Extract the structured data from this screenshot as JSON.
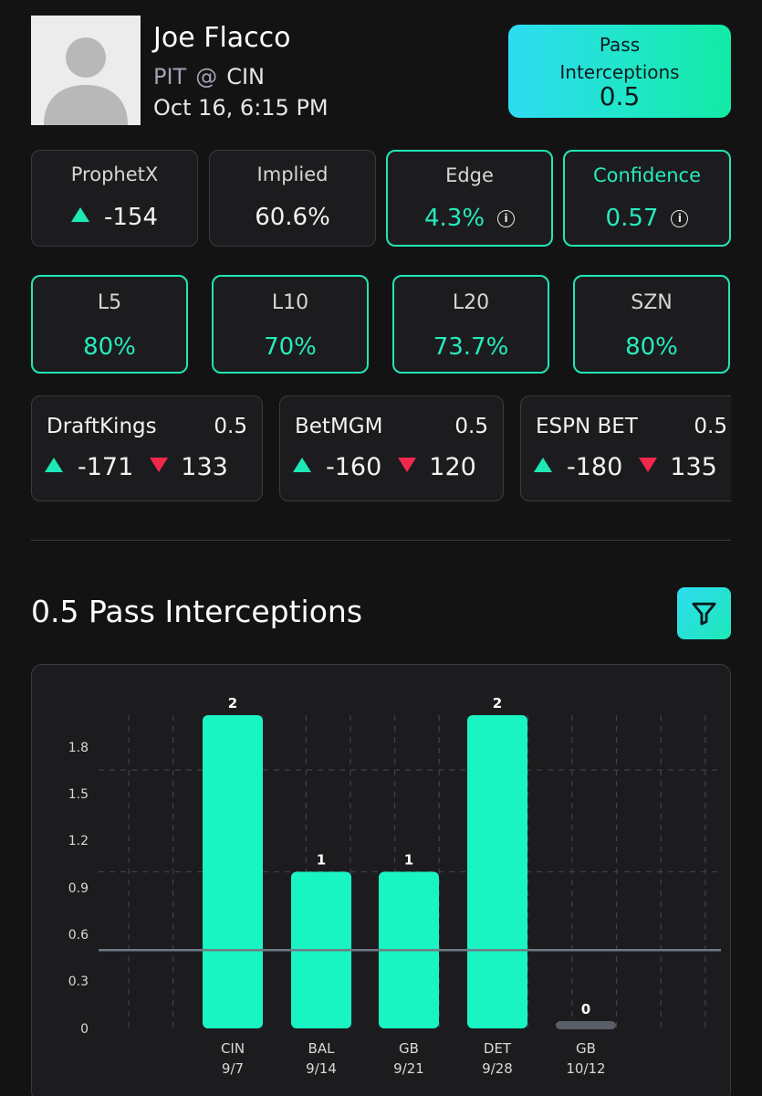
{
  "player": {
    "name": "Joe Flacco",
    "team": "PIT",
    "at": "@",
    "opponent": "CIN",
    "game_time": "Oct 16, 6:15 PM"
  },
  "prop": {
    "market_line1": "Pass",
    "market_line2": "Interceptions",
    "line": "0.5"
  },
  "metrics": {
    "book": {
      "label": "ProphetX",
      "value": "-154"
    },
    "implied": {
      "label": "Implied",
      "value": "60.6%"
    },
    "edge": {
      "label": "Edge",
      "value": "4.3%"
    },
    "confidence": {
      "label": "Confidence",
      "value": "0.57"
    }
  },
  "hit_rates": [
    {
      "label": "L5",
      "value": "80%"
    },
    {
      "label": "L10",
      "value": "70%"
    },
    {
      "label": "L20",
      "value": "73.7%"
    },
    {
      "label": "SZN",
      "value": "80%"
    }
  ],
  "sportsbooks": [
    {
      "name": "DraftKings",
      "line": "0.5",
      "over": "-171",
      "under": "133"
    },
    {
      "name": "BetMGM",
      "line": "0.5",
      "over": "-160",
      "under": "120"
    },
    {
      "name": "ESPN BET",
      "line": "0.5",
      "over": "-180",
      "under": "135"
    }
  ],
  "chart_title": "0.5 Pass Interceptions",
  "colors": {
    "accent": "#21e6b4",
    "under": "#f0284b",
    "miss_bar": "#5a5e66",
    "background": "#131314"
  },
  "icons": {
    "filter": "filter-icon",
    "info": "info-icon",
    "over": "triangle-up-icon",
    "under": "triangle-down-icon"
  },
  "chart_data": {
    "type": "bar",
    "title": "0.5 Pass Interceptions",
    "categories": [
      "CIN",
      "BAL",
      "GB",
      "DET",
      "GB"
    ],
    "dates": [
      "9/7",
      "9/14",
      "9/21",
      "9/28",
      "10/12"
    ],
    "values": [
      2,
      1,
      1,
      2,
      0
    ],
    "value_labels": [
      "2",
      "1",
      "1",
      "2",
      "0"
    ],
    "line_threshold": 0.5,
    "yticks": [
      "0",
      "0.3",
      "0.6",
      "0.9",
      "1.2",
      "1.5",
      "1.8"
    ],
    "ytick_values": [
      0,
      0.3,
      0.6,
      0.9,
      1.2,
      1.5,
      1.8
    ],
    "ylim": [
      0,
      2
    ],
    "grid": true,
    "xlabel": "",
    "ylabel": ""
  }
}
